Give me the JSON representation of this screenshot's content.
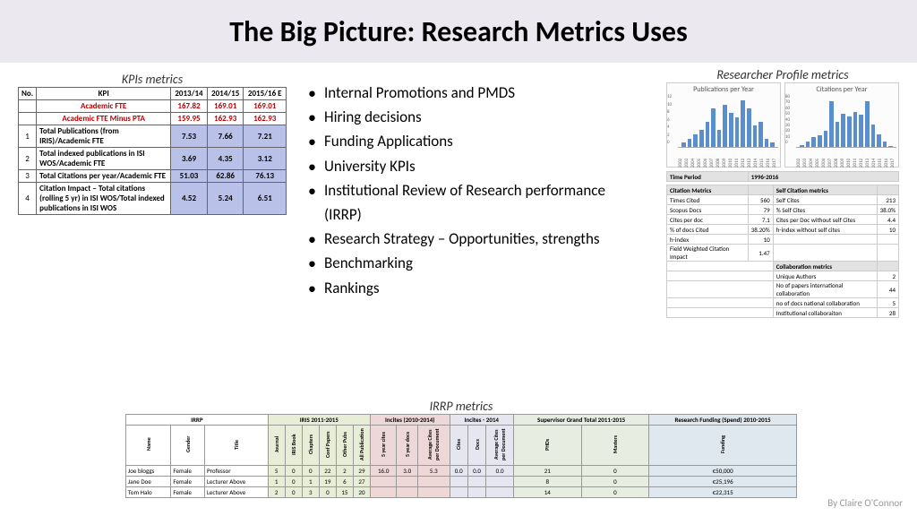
{
  "title": "The Big Picture: Research Metrics Uses",
  "byline": "By Claire O'Connor",
  "kpis": {
    "label": "KPIs metrics",
    "headers": [
      "No.",
      "KPI",
      "2013/14",
      "2014/15",
      "2015/16 E"
    ],
    "red_rows": [
      {
        "label": "Academic FTE",
        "vals": [
          "167.82",
          "169.01",
          "169.01"
        ]
      },
      {
        "label": "Academic FTE Minus PTA",
        "vals": [
          "159.95",
          "162.93",
          "162.93"
        ]
      }
    ],
    "rows": [
      {
        "no": "1",
        "desc": "Total Publications (from IRIS)/Academic FTE",
        "vals": [
          "7.53",
          "7.66",
          "7.21"
        ]
      },
      {
        "no": "2",
        "desc": "Total indexed publications in ISI WOS/Academic FTE",
        "vals": [
          "3.69",
          "4.35",
          "3.12"
        ]
      },
      {
        "no": "3",
        "desc": "Total Citations per year/Academic FTE",
        "vals": [
          "51.03",
          "62.86",
          "76.13"
        ]
      },
      {
        "no": "4",
        "desc": "Citation Impact – Total citations (rolling 5 yr) in ISI WOS/Total indexed publications in ISI WOS",
        "vals": [
          "4.52",
          "5.24",
          "6.51"
        ]
      }
    ]
  },
  "bullets": [
    "Internal Promotions and PMDS",
    "Hiring decisions",
    "Funding Applications",
    "University KPIs",
    "Institutional Review of Research performance (IRRP)",
    "Research Strategy – Opportunities, strengths",
    "Benchmarking",
    "Rankings"
  ],
  "profile": {
    "label": "Researcher Profile metrics",
    "chart1": {
      "title": "Publications per Year",
      "ymax": 12,
      "yticks": [
        0,
        2,
        4,
        6,
        8,
        10,
        12
      ],
      "years": [
        "2002",
        "2003",
        "2004",
        "2005",
        "2006",
        "2007",
        "2008",
        "2009",
        "2010",
        "2011",
        "2012",
        "2013",
        "2014",
        "2015",
        "2016",
        "2017"
      ],
      "vals": [
        1,
        2,
        3,
        4,
        6,
        9,
        4,
        10,
        8,
        7,
        11,
        9,
        5,
        6,
        2,
        1
      ],
      "bar_color": "#5a8fcf"
    },
    "chart2": {
      "title": "Citations per Year",
      "ymax": 80,
      "yticks": [
        0,
        10,
        20,
        30,
        40,
        50,
        60,
        70,
        80
      ],
      "years": [
        "2002",
        "2003",
        "2004",
        "2005",
        "2006",
        "2007",
        "2008",
        "2009",
        "2010",
        "2011",
        "2012",
        "2013",
        "2014",
        "2015",
        "2016",
        "2017"
      ],
      "vals": [
        3,
        8,
        15,
        18,
        25,
        72,
        40,
        52,
        48,
        55,
        50,
        72,
        35,
        20,
        8,
        2
      ],
      "bar_color": "#5a8fcf"
    },
    "time_period_label": "Time Period",
    "time_period": "1996-2016",
    "left_hdr": "Citation Metrics",
    "right_hdr": "Self Citation metrics",
    "left_rows": [
      [
        "Times Cited",
        "560"
      ],
      [
        "Scopus Docs",
        "79"
      ],
      [
        "Cites per doc",
        "7.1"
      ],
      [
        "% of docs Cited",
        "38.20%"
      ],
      [
        "h-index",
        "10"
      ],
      [
        "Field Weighted Citation Impact",
        "1.47"
      ]
    ],
    "right_rows": [
      [
        "Self Cites",
        "213"
      ],
      [
        "% Self Cites",
        "38.0%"
      ],
      [
        "Cites per Doc without self Cites",
        "4.4"
      ],
      [
        "h-index without self cites",
        "10"
      ]
    ],
    "collab_hdr": "Collaboration metrics",
    "collab_rows": [
      [
        "Unique Authors",
        "2"
      ],
      [
        "No of papers international collaboration",
        "44"
      ],
      [
        "no of docs national collaboration",
        "5"
      ],
      [
        "Institutional collaboraiton",
        "28"
      ]
    ]
  },
  "irrp": {
    "label": "IRRP metrics",
    "group_headers": {
      "irrp": "IRRP",
      "iris": "IRIS 2011-2015",
      "inc1": "Incites (2010-2014)",
      "inc2": "Incites - 2014",
      "sup": "Supervisor Grand Total 2011-2015",
      "fund": "Research Funding (Spend) 2010-2015"
    },
    "cols": [
      "Name",
      "Gender",
      "Title",
      "Journal",
      "IRIS Book",
      "Chapters",
      "Conf Papers",
      "Other Pubs",
      "All Publication",
      "5 year cites",
      "5 year docs",
      "Average Cites per Document",
      "Cites",
      "Docs",
      "Average Cites per Document",
      "PHDs",
      "Masters",
      "Funding"
    ],
    "rows": [
      [
        "Joe bloggs",
        "Female",
        "Professor",
        "5",
        "0",
        "0",
        "22",
        "2",
        "29",
        "16.0",
        "3.0",
        "5.3",
        "0.0",
        "0.0",
        "0.0",
        "21",
        "0",
        "€50,000"
      ],
      [
        "Jane Doe",
        "Female",
        "Lecturer Above",
        "1",
        "0",
        "1",
        "19",
        "6",
        "27",
        "",
        "",
        "",
        "",
        "",
        "",
        "8",
        "0",
        "€25,196"
      ],
      [
        "Tom Halo",
        "Female",
        "Lecturer Above",
        "2",
        "0",
        "3",
        "0",
        "15",
        "20",
        "",
        "",
        "",
        "",
        "",
        "",
        "14",
        "0",
        "€22,315"
      ]
    ]
  }
}
